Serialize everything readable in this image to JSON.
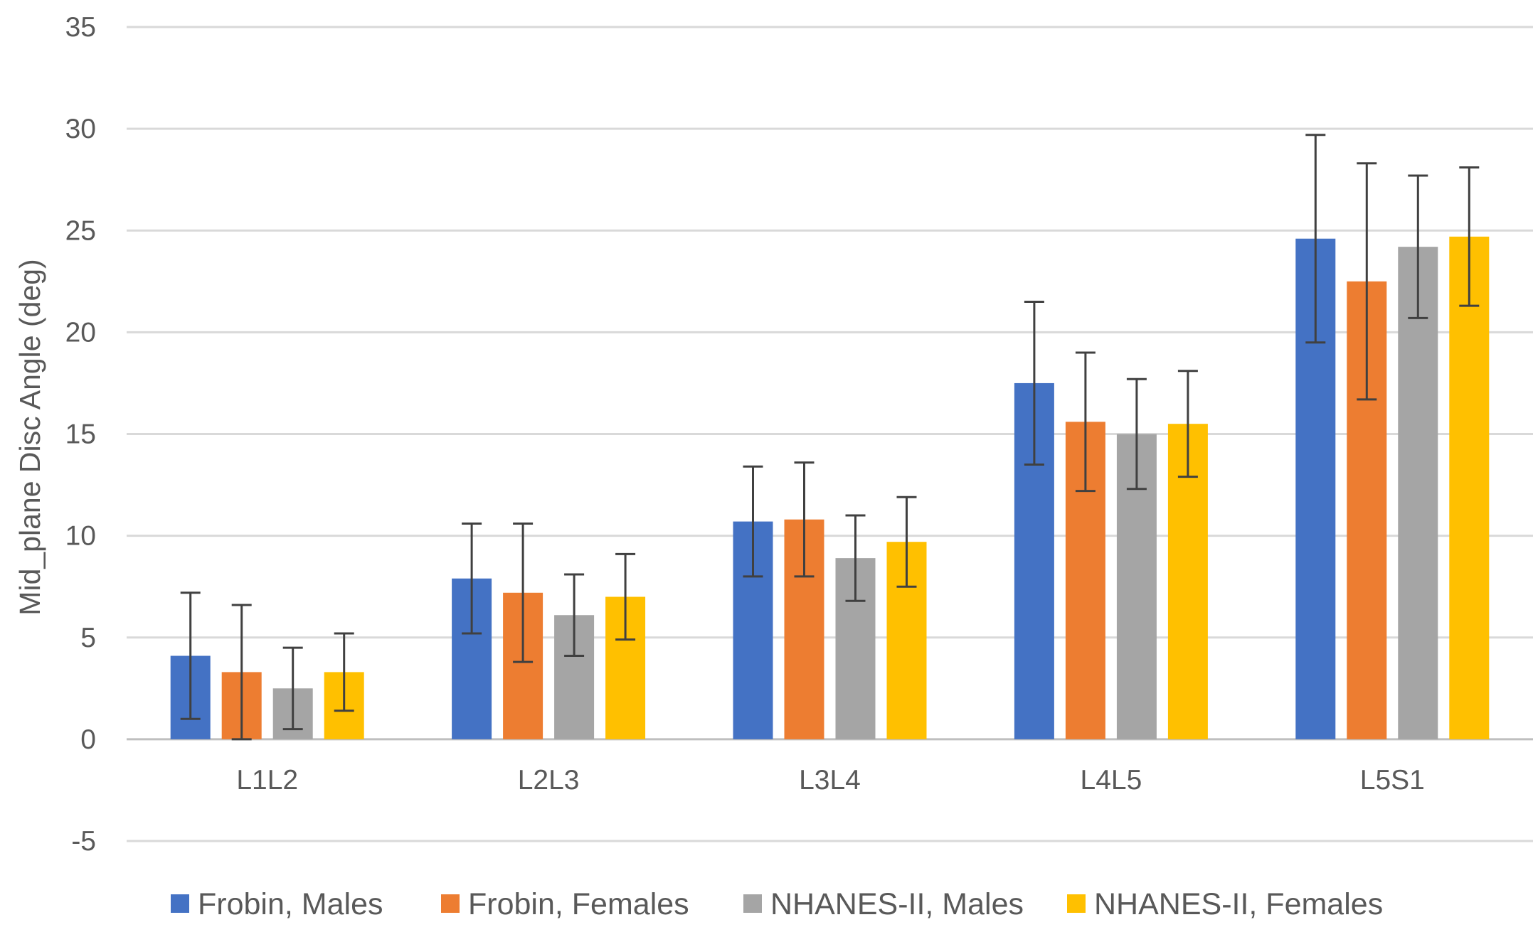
{
  "chart_data": {
    "type": "bar",
    "title": "",
    "xlabel": "",
    "ylabel": "Mid_plane Disc Angle (deg)",
    "ylim": [
      -5,
      35
    ],
    "yticks": [
      "35",
      "30",
      "25",
      "20",
      "15",
      "10",
      "5",
      "0",
      "-5"
    ],
    "categories": [
      "L1L2",
      "L2L3",
      "L3L4",
      "L4L5",
      "L5S1"
    ],
    "grid": true,
    "legend_position": "bottom",
    "series": [
      {
        "name": "Frobin, Males",
        "color": "#4472C4",
        "values": [
          4.1,
          7.9,
          10.7,
          17.5,
          24.6
        ],
        "error": [
          3.1,
          2.7,
          2.7,
          4.0,
          5.1
        ]
      },
      {
        "name": "Frobin, Females",
        "color": "#ED7D31",
        "values": [
          3.3,
          7.2,
          10.8,
          15.6,
          22.5
        ],
        "error": [
          3.3,
          3.4,
          2.8,
          3.4,
          5.8
        ]
      },
      {
        "name": "NHANES-II, Males",
        "color": "#A5A5A5",
        "values": [
          2.5,
          6.1,
          8.9,
          15.0,
          24.2
        ],
        "error": [
          2.0,
          2.0,
          2.1,
          2.7,
          3.5
        ]
      },
      {
        "name": "NHANES-II, Females",
        "color": "#FFC000",
        "values": [
          3.3,
          7.0,
          9.7,
          15.5,
          24.7
        ],
        "error": [
          1.9,
          2.1,
          2.2,
          2.6,
          3.4
        ]
      }
    ]
  }
}
